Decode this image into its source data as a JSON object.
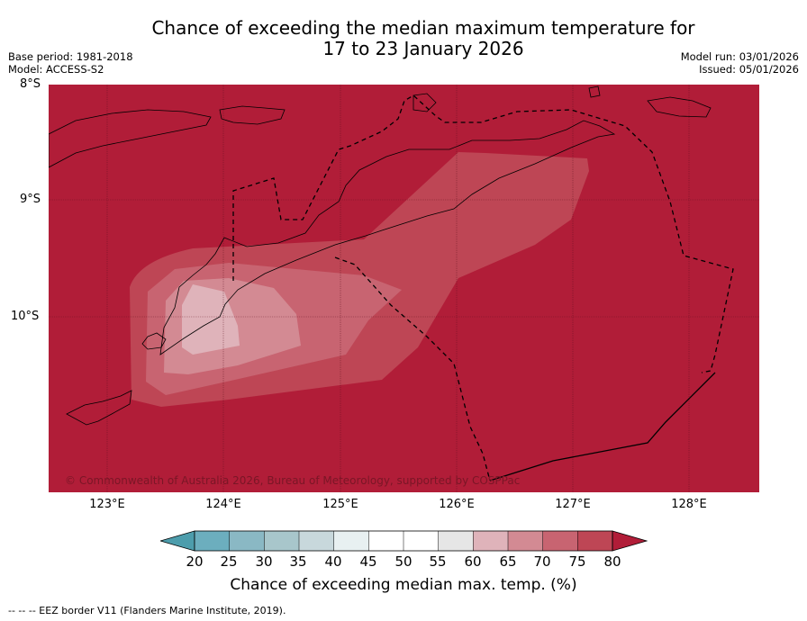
{
  "header": {
    "title_line1": "Chance of exceeding the median maximum temperature for",
    "title_line2": "17 to 23 January 2026",
    "base_period": "Base period: 1981-2018",
    "model": "Model: ACCESS-S2",
    "model_run": "Model run: 03/01/2026",
    "issued": "Issued: 05/01/2026"
  },
  "map": {
    "copyright": "© Commonwealth of Australia 2026, Bureau of Meteorology, supported by COSPPac",
    "lat_labels": [
      "8°S",
      "9°S",
      "10°S"
    ],
    "lon_labels": [
      "123°E",
      "124°E",
      "125°E",
      "126°E",
      "127°E",
      "128°E"
    ],
    "lat_values": [
      -8,
      -9,
      -10
    ],
    "lon_values": [
      123,
      124,
      125,
      126,
      127,
      128
    ],
    "extent": {
      "lon_min": 122.5,
      "lon_max": 128.6,
      "lat_min": -11.5,
      "lat_max": -8.0
    },
    "dominant_category": "> 80%"
  },
  "colorbar": {
    "ticks": [
      "20",
      "25",
      "30",
      "35",
      "40",
      "45",
      "50",
      "55",
      "60",
      "65",
      "70",
      "75",
      "80"
    ],
    "colors": [
      "#4d9dac",
      "#6caebe",
      "#8ab8c4",
      "#a8c6cb",
      "#c8d8dc",
      "#e8f0f1",
      "#ffffff",
      "#ffffff",
      "#e6e6e6",
      "#dfb3ba",
      "#d38a93",
      "#c86471",
      "#be4655",
      "#b11d38"
    ],
    "label": "Chance of exceeding median max. temp. (%)"
  },
  "legend": {
    "eez_note": "-- -- -- EEZ border V11 (Flanders Marine Institute, 2019)."
  }
}
